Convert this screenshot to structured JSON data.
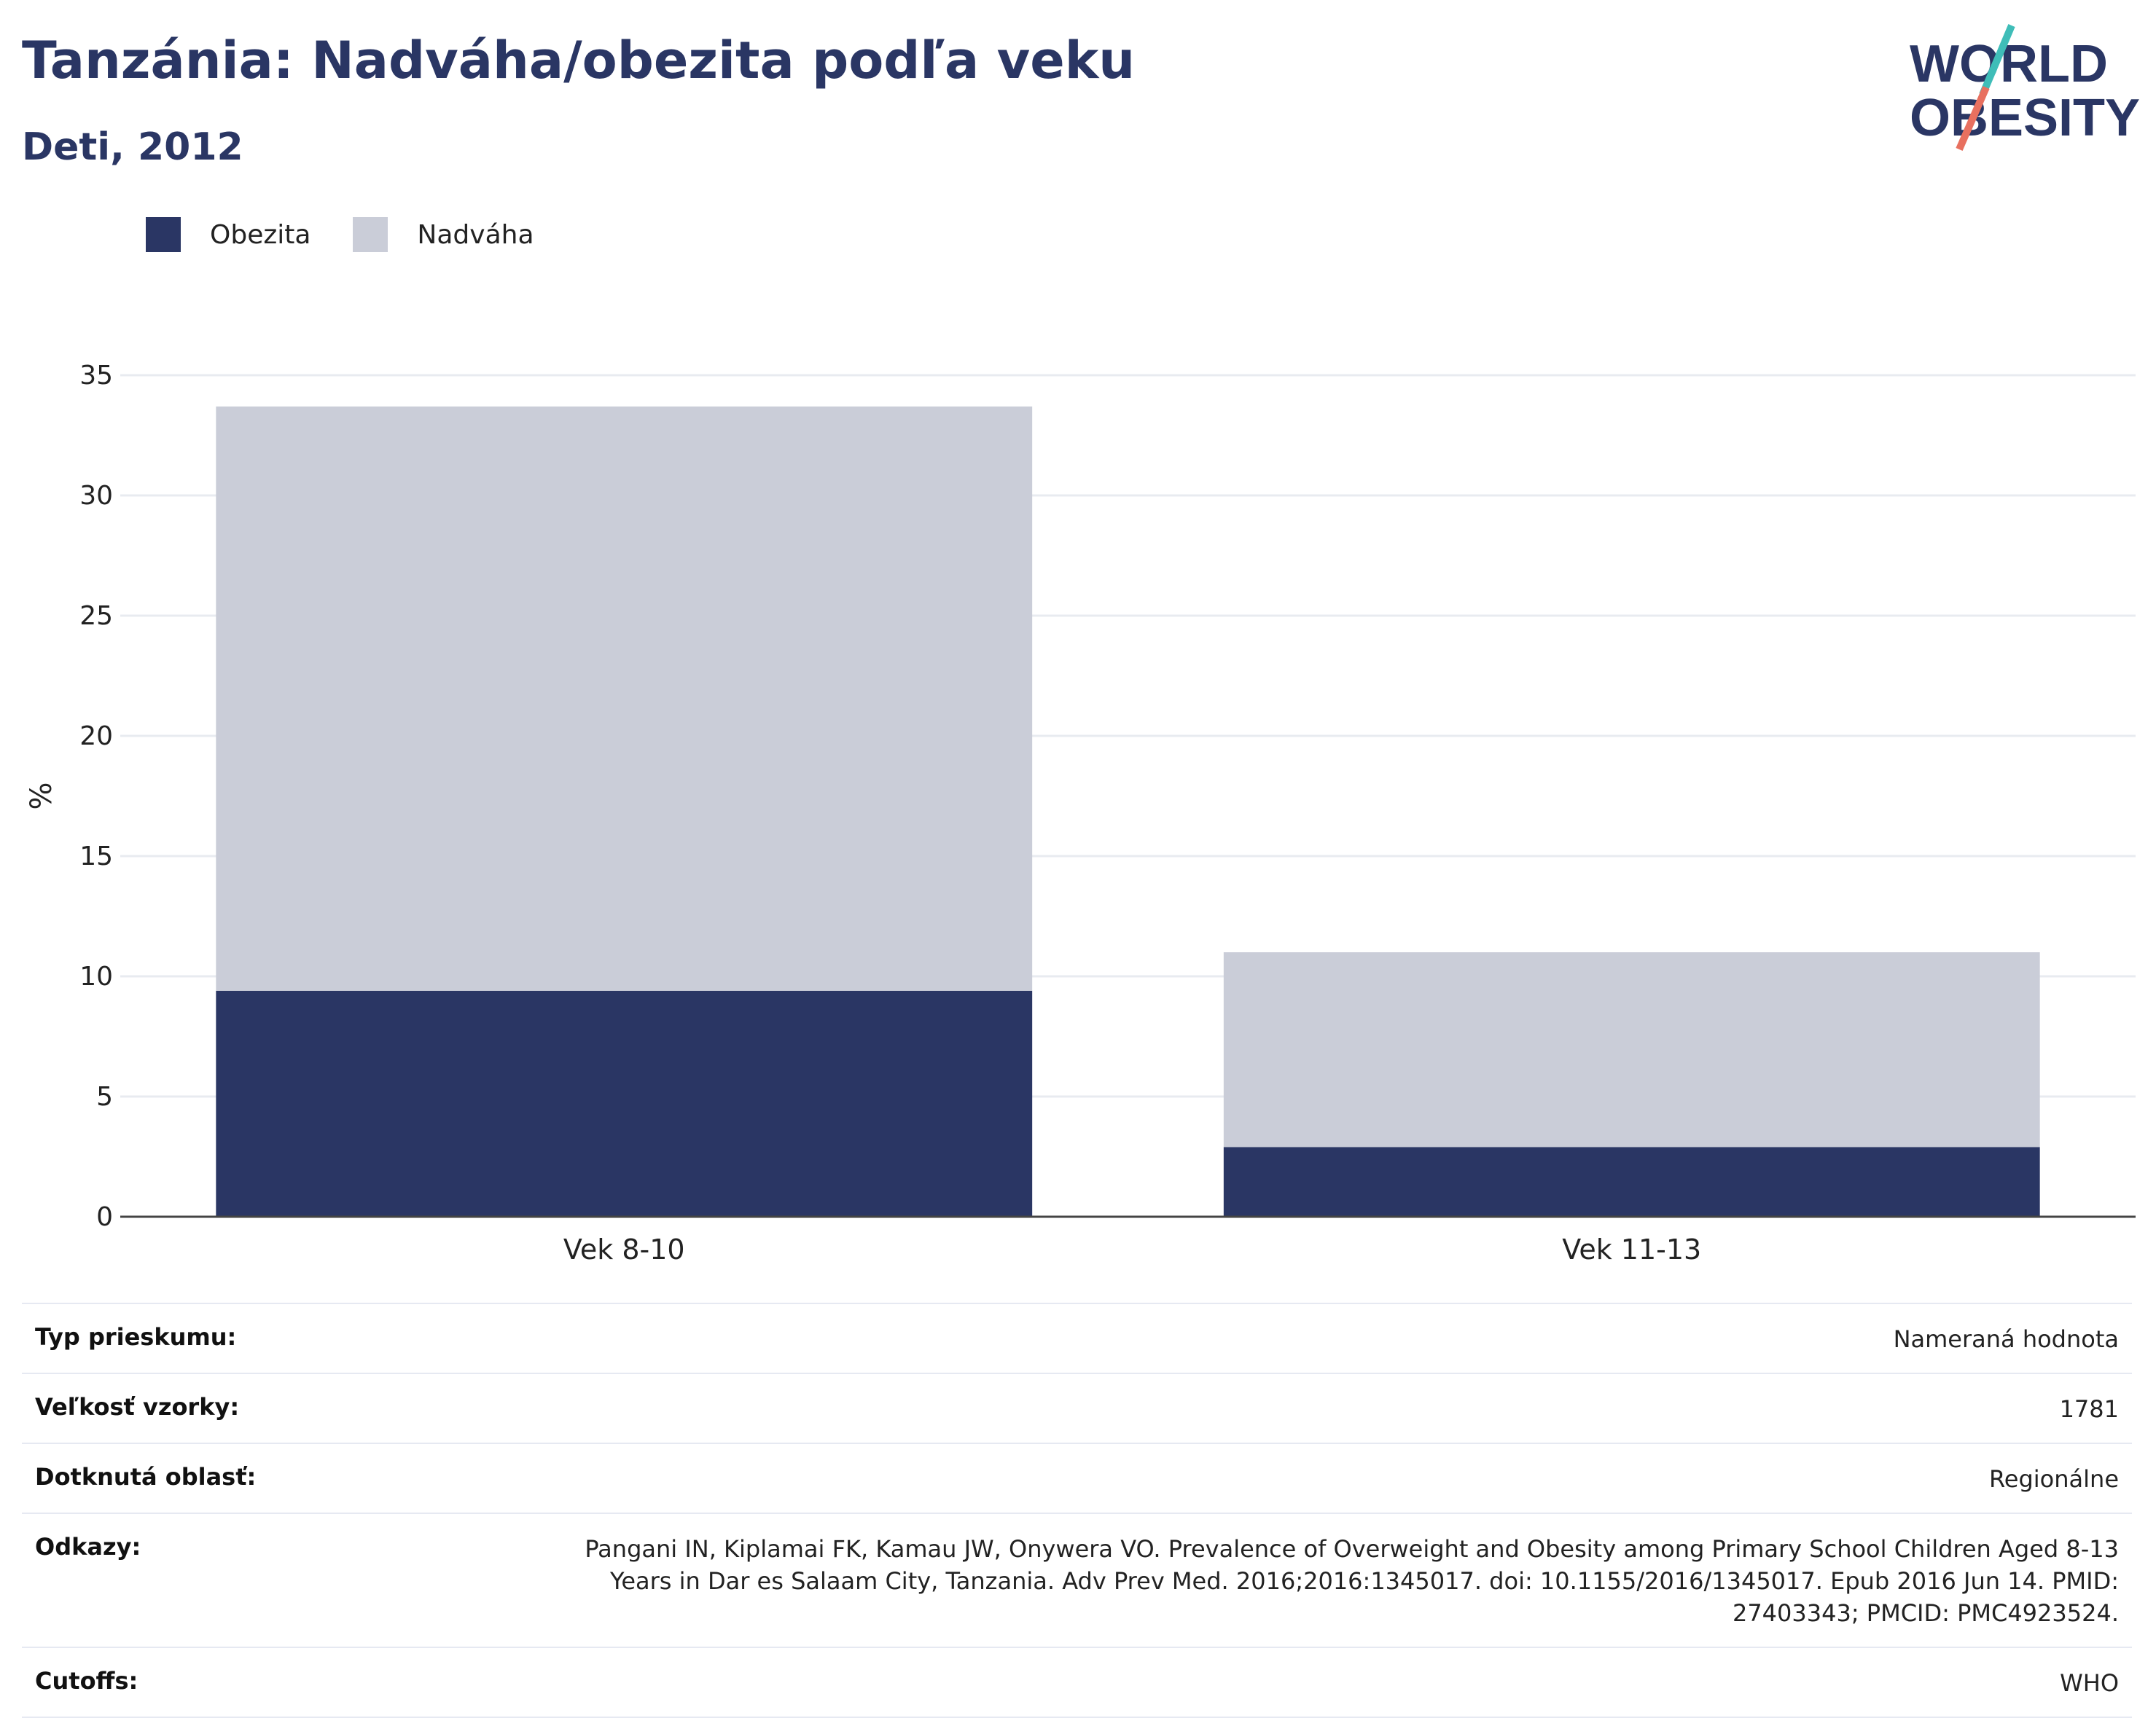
{
  "header": {
    "title": "Tanzánia: Nadváha/obezita podľa veku",
    "subtitle": "Deti, 2012"
  },
  "logo": {
    "line1": "WORLD",
    "line2": "OBESITY"
  },
  "colors": {
    "obezita": "#2a3664",
    "nadvaha": "#cacdd8",
    "title": "#2a3664",
    "logo_teal": "#3fbdb8",
    "logo_salmon": "#e8705f"
  },
  "chart_data": {
    "type": "bar",
    "stacked": true,
    "categories": [
      "Vek 8-10",
      "Vek 11-13"
    ],
    "series": [
      {
        "name": "Obezita",
        "values": [
          9.4,
          2.9
        ]
      },
      {
        "name": "Nadváha",
        "values": [
          24.3,
          8.1
        ]
      }
    ],
    "ylabel": "%",
    "xlabel": "",
    "ylim": [
      0,
      35
    ],
    "yticks": [
      0,
      5,
      10,
      15,
      20,
      25,
      30,
      35
    ],
    "grid": true,
    "legend_position": "top-left"
  },
  "info_table": [
    {
      "key": "Typ prieskumu:",
      "value": "Nameraná hodnota"
    },
    {
      "key": "Veľkosť vzorky:",
      "value": "1781"
    },
    {
      "key": "Dotknutá oblasť:",
      "value": "Regionálne"
    },
    {
      "key": "Odkazy:",
      "value": "Pangani IN, Kiplamai FK, Kamau JW, Onywera VO. Prevalence of Overweight and Obesity among Primary School Children Aged 8-13 Years in Dar es Salaam City, Tanzania. Adv Prev Med. 2016;2016:1345017. doi: 10.1155/2016/1345017. Epub 2016 Jun 14. PMID: 27403343; PMCID: PMC4923524."
    },
    {
      "key": "Cutoffs:",
      "value": "WHO"
    }
  ]
}
